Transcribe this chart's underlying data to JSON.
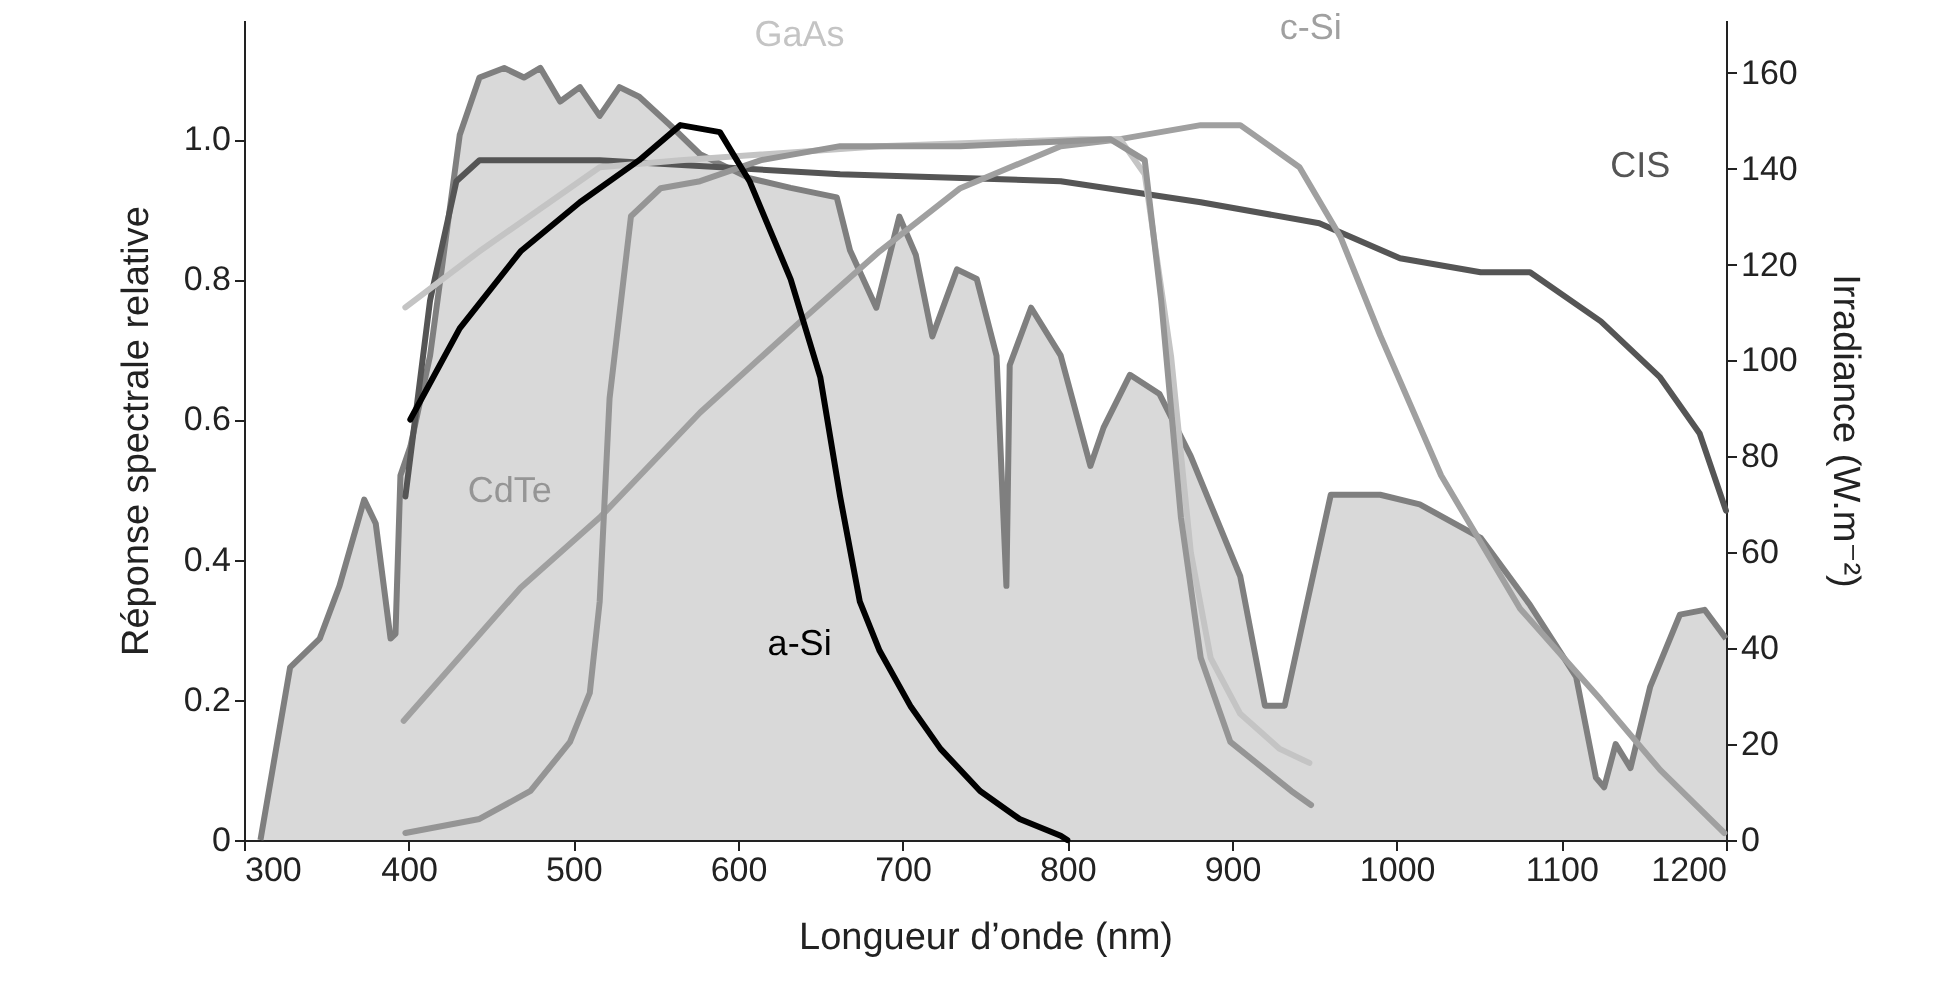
{
  "chart_data": {
    "type": "line",
    "xlabel": "Longueur d’onde (nm)",
    "ylabel": "Réponse spectrale relative",
    "y2label": "Irradiance (W.m⁻²)",
    "xlim": [
      300,
      1200
    ],
    "xticks": [
      300,
      400,
      500,
      600,
      700,
      800,
      900,
      1000,
      1100,
      1200
    ],
    "ylim": [
      0,
      1.17
    ],
    "yticks": [
      0,
      0.2,
      0.4,
      0.6,
      0.8,
      {
        "value": 1,
        "label": "1.0"
      }
    ],
    "y2lim": [
      0,
      171
    ],
    "y2ticks": [
      0,
      20,
      40,
      60,
      80,
      100,
      120,
      140,
      160
    ],
    "line_style": "solid",
    "series": [
      {
        "type": "area",
        "axis": "y2",
        "color": "#d9d9d9",
        "x": [
          310,
          328,
          346,
          358,
          373,
          380,
          389,
          392,
          395,
          401,
          413,
          431,
          443,
          458,
          470,
          480,
          492,
          504,
          516,
          528,
          540,
          559,
          577,
          595,
          607,
          632,
          660,
          668,
          684,
          698,
          708,
          718,
          733,
          745,
          757,
          763,
          765,
          778,
          796,
          814,
          822,
          838,
          856,
          875,
          887,
          905,
          920,
          932,
          944,
          960,
          990,
          1014,
          1051,
          1081,
          1109,
          1121,
          1126,
          1133,
          1142,
          1154,
          1172,
          1187,
          1200
        ],
        "values": [
          0,
          36,
          42,
          53,
          71,
          66,
          42,
          43,
          76,
          82,
          101,
          147,
          159,
          161,
          159,
          161,
          154,
          157,
          151,
          157,
          155,
          149,
          143,
          140,
          138,
          136,
          134,
          123,
          111,
          130,
          122,
          105,
          119,
          117,
          101,
          53,
          99,
          111,
          101,
          78,
          86,
          97,
          93,
          80,
          70,
          55,
          28,
          28,
          47,
          72,
          72,
          70,
          63,
          49,
          34,
          13,
          11,
          20,
          15,
          32,
          47,
          48,
          42
        ]
      },
      {
        "name": "CIS",
        "axis": "y",
        "color": "#555555",
        "x": [
          398,
          413,
          429,
          443,
          516,
          662,
          796,
          881,
          953,
          1002,
          1051,
          1081,
          1124,
          1160,
          1184,
          1200
        ],
        "values": [
          0.49,
          0.77,
          0.94,
          0.97,
          0.97,
          0.95,
          0.94,
          0.91,
          0.88,
          0.83,
          0.81,
          0.81,
          0.74,
          0.66,
          0.58,
          0.47
        ]
      },
      {
        "name": "c-Si",
        "axis": "y",
        "color": "#a0a0a0",
        "x": [
          397,
          468,
          516,
          577,
          638,
          686,
          735,
          796,
          832,
          881,
          905,
          941,
          966,
          990,
          1027,
          1075,
          1124,
          1160,
          1199
        ],
        "values": [
          0.17,
          0.36,
          0.46,
          0.61,
          0.74,
          0.84,
          0.93,
          0.99,
          1.0,
          1.02,
          1.02,
          0.96,
          0.86,
          0.72,
          0.52,
          0.33,
          0.2,
          0.1,
          0.01
        ]
      },
      {
        "name": "GaAs",
        "axis": "y",
        "color": "#c4c4c4",
        "x": [
          398,
          443,
          516,
          565,
          686,
          808,
          832,
          847,
          863,
          875,
          887,
          905,
          929,
          947
        ],
        "values": [
          0.76,
          0.84,
          0.96,
          0.97,
          0.99,
          1.0,
          1.0,
          0.95,
          0.69,
          0.41,
          0.26,
          0.18,
          0.13,
          0.11
        ]
      },
      {
        "name": "CdTe",
        "axis": "y",
        "color": "#959595",
        "x": [
          398,
          443,
          474,
          498,
          510,
          516,
          522,
          535,
          553,
          577,
          614,
          662,
          735,
          826,
          847,
          857,
          869,
          881,
          899,
          936,
          948
        ],
        "values": [
          0.01,
          0.03,
          0.07,
          0.14,
          0.21,
          0.34,
          0.63,
          0.89,
          0.93,
          0.94,
          0.97,
          0.99,
          0.99,
          1.0,
          0.97,
          0.77,
          0.46,
          0.26,
          0.14,
          0.07,
          0.05
        ]
      },
      {
        "name": "a-Si",
        "axis": "y",
        "color": "#000000",
        "x": [
          401,
          431,
          468,
          504,
          540,
          565,
          589,
          607,
          632,
          650,
          662,
          674,
          686,
          705,
          723,
          747,
          771,
          796,
          800
        ],
        "values": [
          0.6,
          0.73,
          0.84,
          0.91,
          0.97,
          1.02,
          1.01,
          0.94,
          0.8,
          0.66,
          0.49,
          0.34,
          0.27,
          0.19,
          0.13,
          0.07,
          0.03,
          0.006,
          0
        ]
      }
    ]
  }
}
